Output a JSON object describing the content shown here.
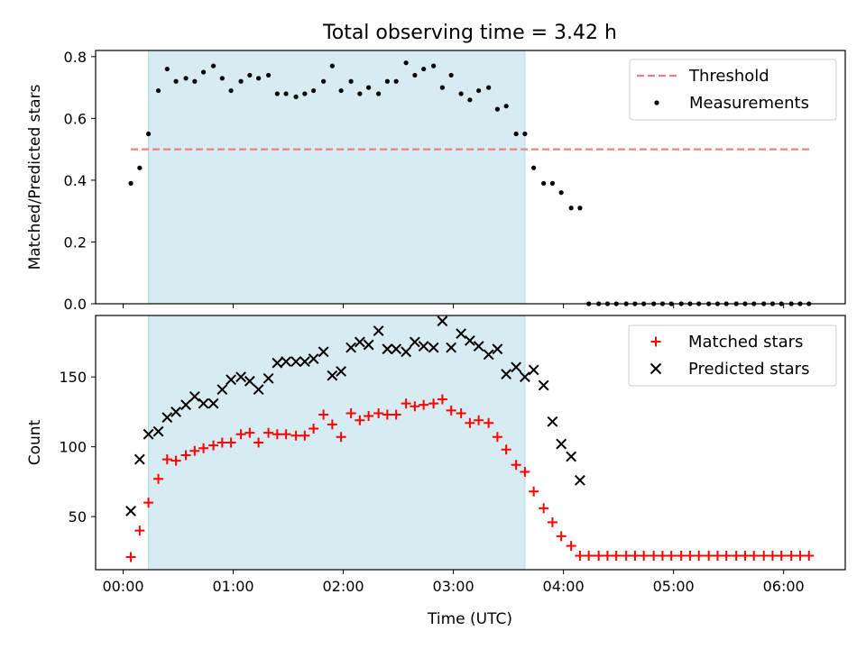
{
  "chart_data": {
    "title": "Total observing time = 3.42 h",
    "xlabel": "Time (UTC)",
    "x_unit": "hours",
    "xlim": [
      -0.25,
      6.56
    ],
    "x_ticks": [
      {
        "value": 0,
        "label": "00:00"
      },
      {
        "value": 1,
        "label": "01:00"
      },
      {
        "value": 2,
        "label": "02:00"
      },
      {
        "value": 3,
        "label": "03:00"
      },
      {
        "value": 4,
        "label": "04:00"
      },
      {
        "value": 5,
        "label": "05:00"
      },
      {
        "value": 6,
        "label": "06:00"
      }
    ],
    "shaded_interval": {
      "start": 0.23,
      "end": 3.65,
      "color": "#add8e6"
    },
    "panels": [
      {
        "type": "scatter",
        "ylabel": "Matched/Predicted stars",
        "ylim": [
          0.0,
          0.82
        ],
        "y_ticks": [
          {
            "value": 0.0,
            "label": "0.0"
          },
          {
            "value": 0.2,
            "label": "0.2"
          },
          {
            "value": 0.4,
            "label": "0.4"
          },
          {
            "value": 0.6,
            "label": "0.6"
          },
          {
            "value": 0.8,
            "label": "0.8"
          }
        ],
        "legend": "top-right",
        "threshold": {
          "name": "Threshold",
          "value": 0.5,
          "x_start": 0.07,
          "x_end": 6.25,
          "color": "#f08080"
        },
        "series": [
          {
            "name": "Measurements",
            "marker": "dot",
            "color": "#000000",
            "x": [
              0.07,
              0.15,
              0.23,
              0.32,
              0.4,
              0.48,
              0.57,
              0.65,
              0.73,
              0.82,
              0.9,
              0.98,
              1.07,
              1.15,
              1.23,
              1.32,
              1.4,
              1.48,
              1.57,
              1.65,
              1.73,
              1.82,
              1.9,
              1.98,
              2.07,
              2.15,
              2.23,
              2.32,
              2.4,
              2.48,
              2.57,
              2.65,
              2.73,
              2.82,
              2.9,
              2.98,
              3.07,
              3.15,
              3.23,
              3.32,
              3.4,
              3.48,
              3.57,
              3.65,
              3.73,
              3.82,
              3.9,
              3.98,
              4.07,
              4.15,
              4.23,
              4.32,
              4.4,
              4.48,
              4.57,
              4.65,
              4.73,
              4.82,
              4.9,
              4.98,
              5.07,
              5.15,
              5.23,
              5.32,
              5.4,
              5.48,
              5.57,
              5.65,
              5.73,
              5.82,
              5.9,
              5.98,
              6.07,
              6.15,
              6.23
            ],
            "y": [
              0.39,
              0.44,
              0.55,
              0.69,
              0.76,
              0.72,
              0.73,
              0.72,
              0.75,
              0.77,
              0.73,
              0.69,
              0.72,
              0.74,
              0.73,
              0.74,
              0.68,
              0.68,
              0.67,
              0.68,
              0.69,
              0.72,
              0.77,
              0.69,
              0.72,
              0.68,
              0.7,
              0.68,
              0.72,
              0.72,
              0.78,
              0.74,
              0.76,
              0.77,
              0.7,
              0.74,
              0.68,
              0.66,
              0.69,
              0.7,
              0.63,
              0.64,
              0.55,
              0.55,
              0.44,
              0.39,
              0.39,
              0.36,
              0.31,
              0.31,
              0.0,
              0.0,
              0.0,
              0.0,
              0.0,
              0.0,
              0.0,
              0.0,
              0.0,
              0.0,
              0.0,
              0.0,
              0.0,
              0.0,
              0.0,
              0.0,
              0.0,
              0.0,
              0.0,
              0.0,
              0.0,
              0.0,
              0.0,
              0.0,
              0.0
            ]
          }
        ]
      },
      {
        "type": "scatter",
        "ylabel": "Count",
        "ylim": [
          12,
          194
        ],
        "y_ticks": [
          {
            "value": 50,
            "label": "50"
          },
          {
            "value": 100,
            "label": "100"
          },
          {
            "value": 150,
            "label": "150"
          }
        ],
        "legend": "top-right",
        "series": [
          {
            "name": "Matched stars",
            "marker": "plus",
            "color": "#ff0000",
            "x": [
              0.07,
              0.15,
              0.23,
              0.32,
              0.4,
              0.48,
              0.57,
              0.65,
              0.73,
              0.82,
              0.9,
              0.98,
              1.07,
              1.15,
              1.23,
              1.32,
              1.4,
              1.48,
              1.57,
              1.65,
              1.73,
              1.82,
              1.9,
              1.98,
              2.07,
              2.15,
              2.23,
              2.32,
              2.4,
              2.48,
              2.57,
              2.65,
              2.73,
              2.82,
              2.9,
              2.98,
              3.07,
              3.15,
              3.23,
              3.32,
              3.4,
              3.48,
              3.57,
              3.65,
              3.73,
              3.82,
              3.9,
              3.98,
              4.07,
              4.15,
              4.23,
              4.32,
              4.4,
              4.48,
              4.57,
              4.65,
              4.73,
              4.82,
              4.9,
              4.98,
              5.07,
              5.15,
              5.23,
              5.32,
              5.4,
              5.48,
              5.57,
              5.65,
              5.73,
              5.82,
              5.9,
              5.98,
              6.07,
              6.15,
              6.23
            ],
            "y": [
              21,
              40,
              60,
              77,
              91,
              90,
              94,
              97,
              99,
              101,
              103,
              103,
              109,
              110,
              103,
              110,
              109,
              109,
              108,
              108,
              113,
              123,
              116,
              107,
              124,
              119,
              122,
              124,
              123,
              123,
              131,
              129,
              130,
              131,
              134,
              126,
              124,
              117,
              119,
              117,
              107,
              98,
              87,
              82,
              68,
              56,
              46,
              36,
              29,
              22,
              22,
              22,
              22,
              22,
              22,
              22,
              22,
              22,
              22,
              22,
              22,
              22,
              22,
              22,
              22,
              22,
              22,
              22,
              22,
              22,
              22,
              22,
              22,
              22,
              22
            ]
          },
          {
            "name": "Predicted stars",
            "marker": "cross",
            "color": "#000000",
            "x": [
              0.07,
              0.15,
              0.23,
              0.32,
              0.4,
              0.48,
              0.57,
              0.65,
              0.73,
              0.82,
              0.9,
              0.98,
              1.07,
              1.15,
              1.23,
              1.32,
              1.4,
              1.48,
              1.57,
              1.65,
              1.73,
              1.82,
              1.9,
              1.98,
              2.07,
              2.15,
              2.23,
              2.32,
              2.4,
              2.48,
              2.57,
              2.65,
              2.73,
              2.82,
              2.9,
              2.98,
              3.07,
              3.15,
              3.23,
              3.32,
              3.4,
              3.48,
              3.57,
              3.65,
              3.73,
              3.82,
              3.9,
              3.98,
              4.07,
              4.15
            ],
            "y": [
              54,
              91,
              109,
              111,
              121,
              125,
              130,
              136,
              131,
              131,
              141,
              148,
              150,
              147,
              141,
              149,
              160,
              161,
              161,
              161,
              163,
              168,
              151,
              154,
              171,
              175,
              173,
              183,
              170,
              170,
              168,
              175,
              172,
              171,
              190,
              171,
              181,
              176,
              172,
              166,
              170,
              152,
              157,
              150,
              155,
              144,
              118,
              102,
              93,
              76
            ]
          }
        ]
      }
    ]
  }
}
